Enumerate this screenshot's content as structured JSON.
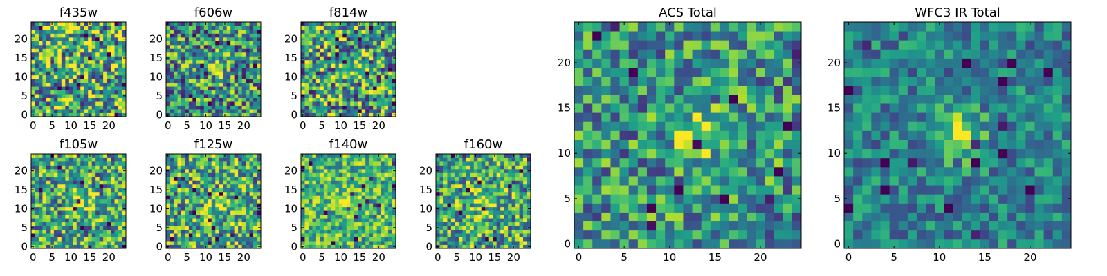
{
  "figure": {
    "colormap": "viridis",
    "frame_color": "#000000",
    "background": "#ffffff"
  },
  "chart_data": [
    {
      "type": "heatmap",
      "title": "f435w",
      "grid_size": 25,
      "blob_center": [
        13,
        12
      ],
      "blob_strength": 0.18,
      "noise": 0.5,
      "base": 0.62,
      "seed": 11,
      "xticks": [
        0,
        5,
        10,
        15,
        20
      ],
      "yticks": [
        0,
        5,
        10,
        15,
        20
      ],
      "xlim": [
        -0.5,
        24.5
      ],
      "ylim": [
        -0.5,
        24.5
      ]
    },
    {
      "type": "heatmap",
      "title": "f606w",
      "grid_size": 25,
      "blob_center": [
        13,
        13
      ],
      "blob_strength": 0.3,
      "noise": 0.45,
      "base": 0.52,
      "seed": 23,
      "xticks": [
        0,
        5,
        10,
        15,
        20
      ],
      "yticks": [
        0,
        5,
        10,
        15,
        20
      ],
      "xlim": [
        -0.5,
        24.5
      ],
      "ylim": [
        -0.5,
        24.5
      ]
    },
    {
      "type": "heatmap",
      "title": "f814w",
      "grid_size": 25,
      "blob_center": [
        13,
        12
      ],
      "blob_strength": 0.25,
      "noise": 0.48,
      "base": 0.56,
      "seed": 37,
      "xticks": [
        0,
        5,
        10,
        15,
        20
      ],
      "yticks": [
        0,
        5,
        10,
        15,
        20
      ],
      "xlim": [
        -0.5,
        24.5
      ],
      "ylim": [
        -0.5,
        24.5
      ]
    },
    {
      "type": "heatmap",
      "title": "f105w",
      "grid_size": 25,
      "blob_center": [
        13,
        12
      ],
      "blob_strength": 0.3,
      "noise": 0.42,
      "base": 0.58,
      "seed": 41,
      "xticks": [
        0,
        5,
        10,
        15,
        20
      ],
      "yticks": [
        0,
        5,
        10,
        15,
        20
      ],
      "xlim": [
        -0.5,
        24.5
      ],
      "ylim": [
        -0.5,
        24.5
      ]
    },
    {
      "type": "heatmap",
      "title": "f125w",
      "grid_size": 25,
      "blob_center": [
        13,
        12
      ],
      "blob_strength": 0.28,
      "noise": 0.42,
      "base": 0.6,
      "seed": 53,
      "xticks": [
        0,
        5,
        10,
        15,
        20
      ],
      "yticks": [
        0,
        5,
        10,
        15,
        20
      ],
      "xlim": [
        -0.5,
        24.5
      ],
      "ylim": [
        -0.5,
        24.5
      ]
    },
    {
      "type": "heatmap",
      "title": "f140w",
      "grid_size": 25,
      "blob_center": [
        12,
        12
      ],
      "blob_strength": 0.3,
      "noise": 0.32,
      "base": 0.66,
      "seed": 67,
      "xticks": [
        0,
        5,
        10,
        15,
        20
      ],
      "yticks": [
        0,
        5,
        10,
        15,
        20
      ],
      "xlim": [
        -0.5,
        24.5
      ],
      "ylim": [
        -0.5,
        24.5
      ]
    },
    {
      "type": "heatmap",
      "title": "f160w",
      "grid_size": 25,
      "blob_center": [
        12,
        12
      ],
      "blob_strength": 0.3,
      "noise": 0.4,
      "base": 0.6,
      "seed": 79,
      "xticks": [
        0,
        5,
        10,
        15,
        20
      ],
      "yticks": [
        0,
        5,
        10,
        15,
        20
      ],
      "xlim": [
        -0.5,
        24.5
      ],
      "ylim": [
        -0.5,
        24.5
      ]
    },
    {
      "type": "heatmap",
      "title": "ACS Total",
      "grid_size": 25,
      "blob_center": [
        13,
        12
      ],
      "blob_strength": 0.4,
      "noise": 0.36,
      "base": 0.52,
      "seed": 97,
      "xticks": [
        0,
        5,
        10,
        15,
        20
      ],
      "yticks": [
        0,
        5,
        10,
        15,
        20
      ],
      "xlim": [
        -0.5,
        24.5
      ],
      "ylim": [
        -0.5,
        24.5
      ]
    },
    {
      "type": "heatmap",
      "title": "WFC3 IR Total",
      "grid_size": 25,
      "blob_center": [
        12,
        12
      ],
      "blob_strength": 0.45,
      "noise": 0.24,
      "base": 0.44,
      "seed": 113,
      "xticks": [
        0,
        5,
        10,
        15,
        20
      ],
      "yticks": [
        0,
        5,
        10,
        15,
        20
      ],
      "xlim": [
        -0.5,
        24.5
      ],
      "ylim": [
        -0.5,
        24.5
      ]
    }
  ]
}
